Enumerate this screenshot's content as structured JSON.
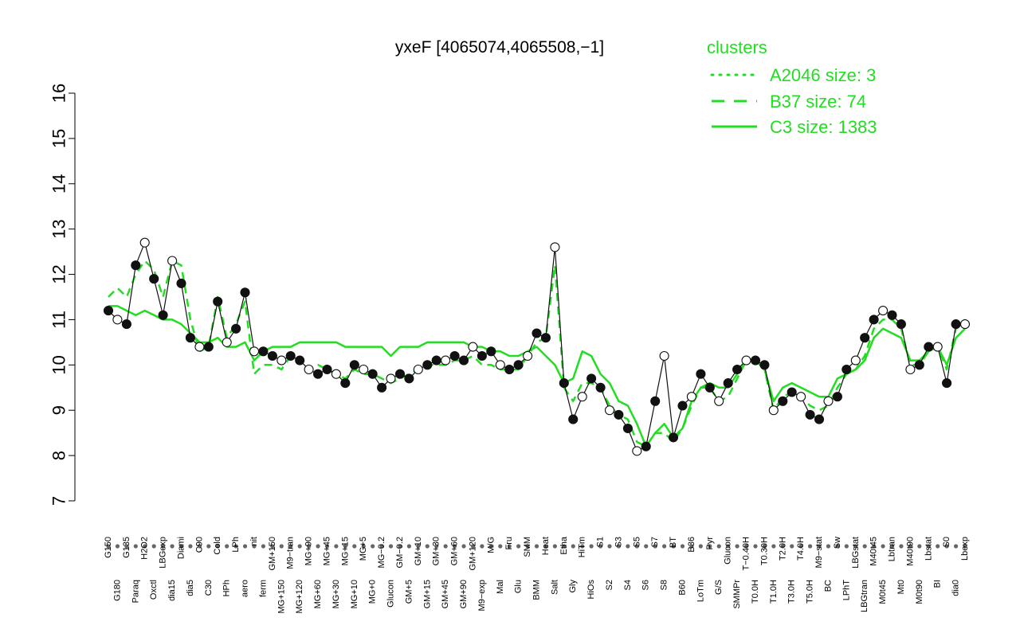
{
  "chart_data": {
    "type": "line",
    "title": "yxeF [4065074,4065508,−1]",
    "xlabel": "",
    "ylabel": "",
    "ylim": [
      7,
      16
    ],
    "yticks": [
      7,
      8,
      9,
      10,
      11,
      12,
      13,
      14,
      15,
      16
    ],
    "grid": false,
    "legend": {
      "title": "clusters",
      "placement": "top-right",
      "entries": [
        {
          "label": "A2046 size: 3",
          "style": "dotted"
        },
        {
          "label": "B37 size: 74",
          "style": "dashed"
        },
        {
          "label": "C3 size: 1383",
          "style": "solid"
        }
      ]
    },
    "x_tick_labels": [
      "G150",
      "G180",
      "G135",
      "Paraq",
      "H2O2",
      "Oxctl",
      "LBGexp",
      "dia15",
      "Diami",
      "dia5",
      "C90",
      "C30",
      "Cold",
      "HPh",
      "LPh",
      "aero",
      "nit",
      "ferm",
      "GM+150",
      "MG+150",
      "M9−tran",
      "MG+120",
      "MG+90",
      "MG+60",
      "MG+45",
      "MG+30",
      "MG+15",
      "MG+10",
      "MG+5",
      "MG+0",
      "MG−0.2",
      "Glucon",
      "GM−0.2",
      "GM+5",
      "GM+10",
      "GM+15",
      "GM+30",
      "GM+45",
      "GM+60",
      "GM+90",
      "GM+120",
      "M9−exp",
      "M/G",
      "Mal",
      "Fru",
      "Glu",
      "SMM",
      "BMM",
      "Heat",
      "Salt",
      "Etha",
      "Gly",
      "HiTm",
      "HiOs",
      "S1",
      "S2",
      "S3",
      "S4",
      "S5",
      "S6",
      "S7",
      "S8",
      "BT",
      "B60",
      "B36",
      "LoTm",
      "Pyr",
      "G/S",
      "Glucon",
      "SMMPr",
      "T−0.40H",
      "T0.0H",
      "T0.30H",
      "T1.0H",
      "T2.0H",
      "T3.0H",
      "T4.0H",
      "T5.0H",
      "M9−stat",
      "BC",
      "Sw",
      "LPhT",
      "LBGstat",
      "LBGtran",
      "M40t45",
      "M0t45",
      "Lbtran",
      "Mt0",
      "M40t90",
      "M0t90",
      "Lbstat",
      "BI",
      "S0",
      "dia0",
      "Lbexp"
    ],
    "series": [
      {
        "name": "C3 size: 1383",
        "style": "solid",
        "values": [
          11.3,
          11.3,
          11.2,
          11.1,
          11.2,
          11.1,
          11.0,
          11.0,
          10.9,
          10.7,
          10.5,
          10.5,
          10.6,
          10.4,
          10.4,
          10.5,
          10.1,
          10.3,
          10.4,
          10.4,
          10.4,
          10.5,
          10.5,
          10.5,
          10.5,
          10.5,
          10.4,
          10.4,
          10.4,
          10.4,
          10.4,
          10.2,
          10.4,
          10.4,
          10.4,
          10.5,
          10.5,
          10.5,
          10.5,
          10.5,
          10.4,
          10.4,
          10.3,
          10.3,
          10.2,
          10.2,
          10.3,
          10.4,
          10.2,
          10.0,
          9.6,
          9.7,
          10.3,
          10.2,
          9.8,
          9.6,
          9.2,
          9.1,
          8.7,
          8.2,
          8.5,
          8.7,
          8.4,
          8.6,
          9.2,
          9.5,
          9.6,
          9.5,
          9.5,
          9.8,
          10.1,
          10.1,
          9.9,
          9.2,
          9.5,
          9.6,
          9.5,
          9.4,
          9.3,
          9.3,
          9.7,
          9.8,
          9.9,
          10.1,
          10.6,
          10.8,
          10.7,
          10.6,
          10.1,
          10.1,
          10.3,
          10.4,
          10.0,
          10.6,
          10.8
        ]
      },
      {
        "name": "B37 size: 74",
        "style": "dashed",
        "values": [
          11.5,
          11.7,
          11.5,
          12.0,
          12.3,
          12.1,
          11.5,
          12.3,
          12.2,
          11.0,
          10.3,
          10.4,
          11.5,
          10.6,
          10.9,
          11.4,
          9.8,
          10.0,
          10.0,
          9.9,
          10.2,
          10.1,
          9.9,
          10.0,
          9.9,
          9.8,
          9.7,
          9.9,
          9.8,
          9.8,
          9.7,
          9.6,
          9.7,
          9.8,
          9.9,
          10.0,
          10.0,
          10.0,
          10.1,
          10.1,
          10.2,
          10.0,
          10.0,
          9.9,
          9.9,
          9.9,
          10.2,
          10.5,
          10.6,
          12.2,
          9.5,
          9.2,
          9.6,
          9.6,
          9.5,
          9.1,
          8.9,
          8.8,
          8.3,
          8.2,
          8.5,
          8.5,
          8.3,
          8.6,
          9.1,
          9.5,
          9.5,
          9.2,
          9.3,
          9.7,
          10.1,
          10.1,
          9.9,
          9.0,
          9.3,
          9.4,
          9.3,
          9.1,
          9.0,
          9.1,
          9.5,
          9.8,
          9.9,
          10.2,
          10.8,
          11.0,
          11.0,
          10.8,
          10.0,
          10.0,
          10.3,
          10.4,
          9.9,
          10.8,
          11.0
        ]
      },
      {
        "name": "A2046 size: 3",
        "style": "dotted",
        "values": [
          11.2,
          11.0,
          10.9,
          12.2,
          12.7,
          11.9,
          11.1,
          12.3,
          11.8,
          10.6,
          10.4,
          10.4,
          11.4,
          10.5,
          10.8,
          11.6,
          10.3,
          10.3,
          10.2,
          10.1,
          10.2,
          10.1,
          9.9,
          9.8,
          9.9,
          9.8,
          9.6,
          10.0,
          9.9,
          9.8,
          9.5,
          9.7,
          9.8,
          9.7,
          9.9,
          10.0,
          10.1,
          10.1,
          10.2,
          10.1,
          10.4,
          10.2,
          10.3,
          10.0,
          9.9,
          10.0,
          10.2,
          10.7,
          10.6,
          12.6,
          9.6,
          8.8,
          9.3,
          9.7,
          9.5,
          9.0,
          8.9,
          8.6,
          8.1,
          8.2,
          9.2,
          10.2,
          8.4,
          9.1,
          9.3,
          9.8,
          9.5,
          9.2,
          9.6,
          9.9,
          10.1,
          10.1,
          10.0,
          9.0,
          9.2,
          9.4,
          9.3,
          8.9,
          8.8,
          9.2,
          9.3,
          9.9,
          10.1,
          10.6,
          11.0,
          11.2,
          11.1,
          10.9,
          9.9,
          10.0,
          10.4,
          10.4,
          9.6,
          10.9,
          10.9
        ]
      }
    ]
  }
}
